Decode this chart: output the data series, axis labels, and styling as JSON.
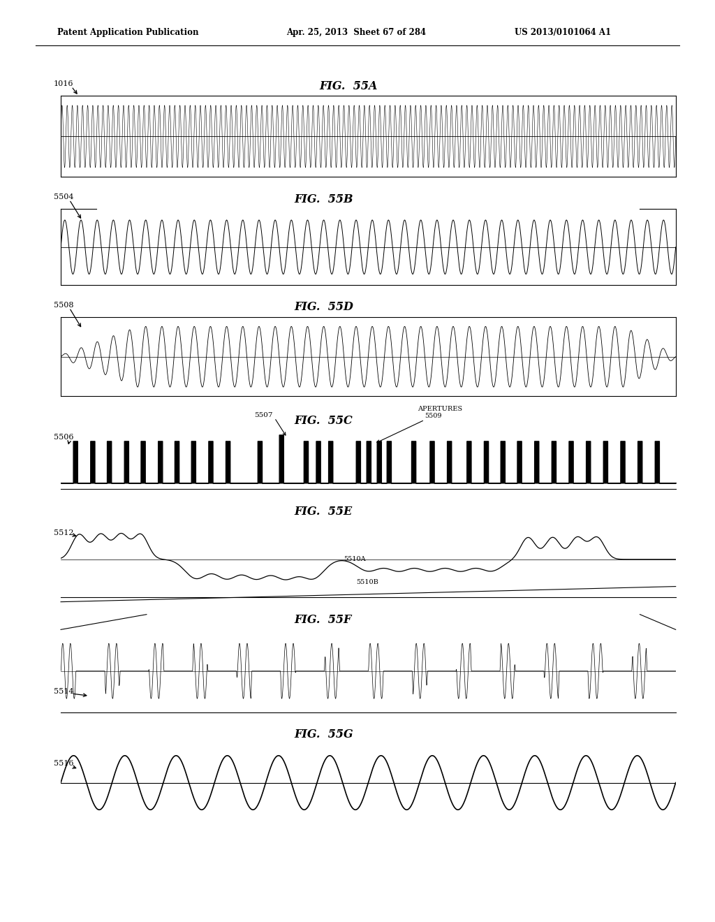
{
  "header_left": "Patent Application Publication",
  "header_mid": "Apr. 25, 2013  Sheet 67 of 284",
  "header_right": "US 2013/0101064 A1",
  "fig_labels": [
    "FIG.  55A",
    "FIG.  55B",
    "FIG.  55D",
    "FIG.  55C",
    "FIG.  55E",
    "FIG.  55F",
    "FIG.  55G"
  ],
  "ref_labels": [
    "1016",
    "5504",
    "5508",
    "5506",
    "5512",
    "5514",
    "5516"
  ],
  "bg_color": "#ffffff"
}
